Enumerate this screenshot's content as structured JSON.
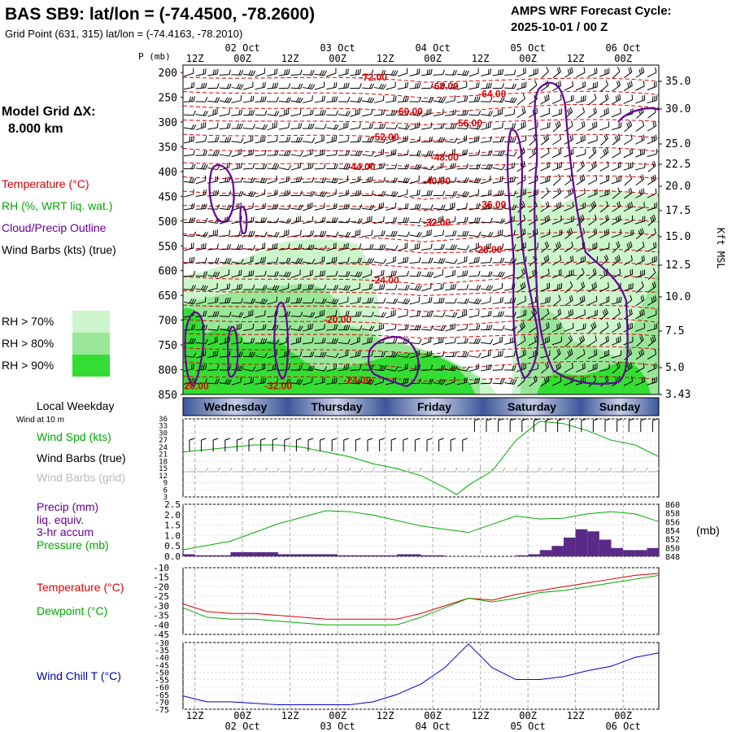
{
  "header": {
    "title": "BAS SB9:  lat/lon = (-74.4500, -78.2600)",
    "grid_point": "Grid Point (631, 315) lat/lon = (-74.4163, -78.2010)",
    "model_name": "AMPS WRF Forecast Cycle:",
    "cycle": "2025-10-01 / 00  Z"
  },
  "left_panel": {
    "grid_label": "Model Grid ΔX:",
    "grid_value": "8.000 km",
    "legend": [
      {
        "label": "Temperature (°C)",
        "color": "#dd0000"
      },
      {
        "label": "RH (%, WRT liq. wat.)",
        "color": "#00aa00"
      },
      {
        "label": "Cloud/Precip Outline",
        "color": "#660099"
      },
      {
        "label": "Wind Barbs (kts) (true)",
        "color": "#000000"
      }
    ],
    "rh_scale": [
      {
        "label": "RH > 70%",
        "color": "#ccf5cc"
      },
      {
        "label": "RH > 80%",
        "color": "#99e699"
      },
      {
        "label": "RH > 90%",
        "color": "#33dd33"
      }
    ],
    "weekday_title": "Local Weekday",
    "wind_title": "Wind at 10 m",
    "panel_labels": {
      "wind_spd": "Wind Spd (kts)",
      "barbs_true": "Wind Barbs (true)",
      "barbs_grid": "Wind Barbs (grid)",
      "precip": [
        "Precip (mm)",
        "liq. equiv.",
        "3-hr accum"
      ],
      "pressure": "Pressure (mb)",
      "temperature": "Temperature (°C)",
      "dewpoint": "Dewpoint (°C)",
      "windchill": "Wind Chill T (°C)"
    }
  },
  "axes": {
    "p_label": "P (mb)",
    "right_label": "Kft MSL",
    "mb_unit": "(mb)",
    "time_ticks": [
      "12Z",
      "00Z",
      "12Z",
      "00Z",
      "12Z",
      "00Z",
      "12Z",
      "00Z",
      "12Z",
      "00Z"
    ],
    "date_ticks": [
      "02 Oct",
      "03 Oct",
      "04 Oct",
      "05 Oct",
      "06 Oct"
    ],
    "pressure_levels": [
      "200",
      "250",
      "300",
      "350",
      "400",
      "450",
      "500",
      "550",
      "600",
      "650",
      "700",
      "750",
      "800",
      "850"
    ],
    "kft_levels": [
      "35.0",
      "30.0",
      "25.0",
      "22.5",
      "20.0",
      "17.5",
      "15.0",
      "12.5",
      "10.0",
      "7.5",
      "5.0",
      "3.43"
    ],
    "weekdays": [
      "Wednesday",
      "Thursday",
      "Friday",
      "Saturday",
      "Sunday"
    ]
  },
  "chart_data": [
    {
      "type": "heatmap",
      "title": "",
      "xlabel": "",
      "ylabel": "P (mb)",
      "ylim": [
        850,
        200
      ],
      "temperature_contours": [
        {
          "label": "-72.00",
          "value": -72,
          "time_h": 48,
          "p": 210
        },
        {
          "label": "-68.00",
          "value": -68,
          "time_h": 66,
          "p": 228
        },
        {
          "label": "-64.00",
          "value": -64,
          "time_h": 78,
          "p": 243
        },
        {
          "label": "-60.00",
          "value": -60,
          "time_h": 57,
          "p": 279
        },
        {
          "label": "-56.00",
          "value": -56,
          "time_h": 72,
          "p": 302
        },
        {
          "label": "-52.00",
          "value": -52,
          "time_h": 51,
          "p": 330
        },
        {
          "label": "-48.00",
          "value": -48,
          "time_h": 66,
          "p": 371
        },
        {
          "label": "-44.00",
          "value": -44,
          "time_h": 45,
          "p": 390
        },
        {
          "label": "-40.00",
          "value": -40,
          "time_h": 64,
          "p": 419
        },
        {
          "label": "-36.00",
          "value": -36,
          "time_h": 78,
          "p": 467
        },
        {
          "label": "-32.00",
          "value": -32,
          "time_h": 64,
          "p": 503
        },
        {
          "label": "-28.00",
          "value": -28,
          "time_h": 77,
          "p": 558
        },
        {
          "label": "-24.00",
          "value": -24,
          "time_h": 51,
          "p": 619
        },
        {
          "label": "-20.00",
          "value": -20,
          "time_h": 39,
          "p": 699
        },
        {
          "label": "-24.00",
          "value": -24,
          "time_h": 44,
          "p": 821
        },
        {
          "label": "-20.00",
          "value": -20,
          "time_h": 3,
          "p": 833
        },
        {
          "label": "-32.00",
          "value": -32,
          "time_h": 24,
          "p": 833
        }
      ]
    },
    {
      "type": "line",
      "title": "",
      "ylim": [
        3,
        36
      ],
      "y_ticks": [
        36,
        33,
        30,
        27,
        24,
        21,
        18,
        15,
        12,
        9,
        6,
        3
      ],
      "series": [
        {
          "name": "Wind Spd (kts)",
          "x": [
            0,
            6,
            12,
            18,
            24,
            30,
            36,
            42,
            48,
            54,
            60,
            66,
            69,
            72,
            78,
            84,
            90,
            96,
            102,
            108,
            114,
            120
          ],
          "values": [
            22,
            23,
            24,
            25,
            25,
            24,
            22,
            20,
            17,
            15,
            12,
            7,
            4,
            8,
            14,
            27,
            35,
            34,
            31,
            27,
            25,
            20
          ]
        }
      ]
    },
    {
      "type": "bar",
      "title": "",
      "ylim": [
        0,
        2.5
      ],
      "y_ticks": [
        2.5,
        2.0,
        1.5,
        1.0,
        0.5,
        0.0
      ],
      "right_ylim": [
        848,
        860
      ],
      "right_ticks": [
        860,
        858,
        856,
        854,
        852,
        850,
        848
      ],
      "series": [
        {
          "name": "Precip (mm)",
          "x": [
            1.5,
            4.5,
            7.5,
            10.5,
            13.5,
            16.5,
            19.5,
            22.5,
            25.5,
            28.5,
            31.5,
            34.5,
            37.5,
            40.5,
            43.5,
            46.5,
            49.5,
            52.5,
            55.5,
            58.5,
            61.5,
            64.5,
            67.5,
            70.5,
            73.5,
            76.5,
            79.5,
            82.5,
            85.5,
            88.5,
            91.5,
            94.5,
            97.5,
            100.5,
            103.5,
            106.5,
            109.5,
            112.5,
            115.5,
            118.5
          ],
          "values": [
            0.1,
            0.05,
            0.05,
            0.05,
            0.2,
            0.2,
            0.2,
            0.2,
            0.1,
            0.1,
            0.1,
            0.1,
            0.1,
            0.05,
            0.05,
            0.05,
            0.05,
            0.05,
            0.1,
            0.1,
            0.05,
            0.05,
            0,
            0,
            0,
            0,
            0,
            0,
            0.05,
            0.1,
            0.3,
            0.5,
            0.9,
            1.3,
            1.2,
            0.8,
            0.4,
            0.3,
            0.3,
            0.4
          ]
        },
        {
          "name": "Pressure (mb)",
          "x": [
            0,
            12,
            24,
            36,
            42,
            48,
            60,
            72,
            84,
            90,
            96,
            102,
            108,
            114,
            120
          ],
          "values": [
            849.5,
            851.5,
            855.5,
            858.5,
            858.3,
            857.5,
            855,
            853.5,
            857.3,
            856.6,
            856.8,
            857.8,
            858.3,
            857.8,
            856
          ]
        }
      ]
    },
    {
      "type": "line",
      "title": "",
      "ylim": [
        -45,
        -10
      ],
      "y_ticks": [
        -10,
        -15,
        -20,
        -25,
        -30,
        -35,
        -40,
        -45
      ],
      "series": [
        {
          "name": "Temperature (°C)",
          "x": [
            0,
            6,
            12,
            18,
            24,
            30,
            36,
            42,
            48,
            54,
            60,
            66,
            72,
            78,
            84,
            90,
            96,
            102,
            108,
            114,
            120
          ],
          "values": [
            -29,
            -33,
            -34,
            -34,
            -35,
            -36,
            -37,
            -37,
            -37,
            -37,
            -34,
            -30,
            -26,
            -27,
            -24,
            -22,
            -20,
            -18,
            -16,
            -14,
            -13
          ]
        },
        {
          "name": "Dewpoint (°C)",
          "x": [
            0,
            6,
            12,
            18,
            24,
            30,
            36,
            42,
            48,
            54,
            60,
            66,
            72,
            78,
            84,
            90,
            96,
            102,
            108,
            114,
            120
          ],
          "values": [
            -31,
            -36,
            -37,
            -37,
            -38,
            -39,
            -40,
            -40,
            -40,
            -40,
            -36,
            -31,
            -26,
            -28,
            -26,
            -23,
            -22,
            -20,
            -18,
            -16,
            -14
          ]
        }
      ]
    },
    {
      "type": "line",
      "title": "",
      "ylim": [
        -75,
        -30
      ],
      "y_ticks": [
        -30,
        -35,
        -40,
        -45,
        -50,
        -55,
        -60,
        -65,
        -70,
        -75
      ],
      "series": [
        {
          "name": "Wind Chill T (°C)",
          "x": [
            0,
            6,
            12,
            18,
            24,
            30,
            36,
            42,
            48,
            54,
            60,
            66,
            72,
            78,
            84,
            90,
            96,
            102,
            108,
            114,
            120
          ],
          "values": [
            -66,
            -70,
            -70,
            -71,
            -72,
            -72,
            -72,
            -72,
            -70,
            -65,
            -58,
            -47,
            -31,
            -47,
            -55,
            -55,
            -53,
            -49,
            -46,
            -40,
            -37
          ]
        }
      ]
    }
  ]
}
